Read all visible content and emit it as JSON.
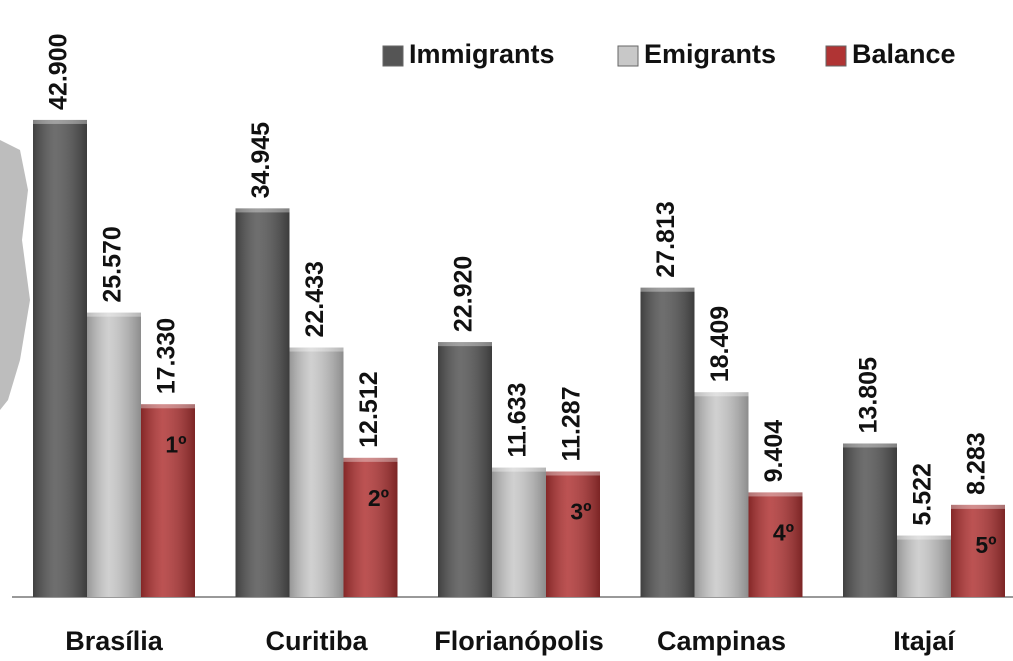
{
  "chart_data": {
    "type": "bar",
    "categories": [
      "Brasília",
      "Curitiba",
      "Florianópolis",
      "Campinas",
      "Itajaí"
    ],
    "series": [
      {
        "name": "Immigrants",
        "color": "#555555",
        "values": [
          42900,
          34945,
          22920,
          27813,
          13805
        ],
        "value_labels": [
          "42.900",
          "34.945",
          "22.920",
          "27.813",
          "13.805"
        ]
      },
      {
        "name": "Emigrants",
        "color": "#c8c8c8",
        "values": [
          25570,
          22433,
          11633,
          18409,
          5522
        ],
        "value_labels": [
          "25.570",
          "22.433",
          "11.633",
          "18.409",
          "5.522"
        ]
      },
      {
        "name": "Balance",
        "color": "#b03434",
        "values": [
          17330,
          12512,
          11287,
          9404,
          8283
        ],
        "value_labels": [
          "17.330",
          "12.512",
          "11.287",
          "9.404",
          "8.283"
        ],
        "rank_labels": [
          "1º",
          "2º",
          "3º",
          "4º",
          "5º"
        ]
      }
    ],
    "ylim": [
      0,
      50000
    ],
    "legend": "top-right"
  }
}
